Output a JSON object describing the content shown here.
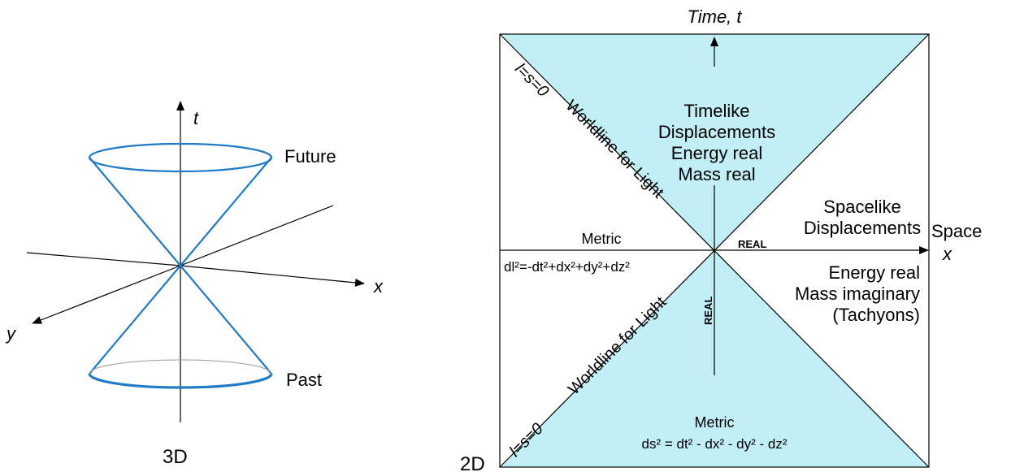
{
  "diagram_3d": {
    "axis_t_label": "t",
    "axis_x_label": "x",
    "axis_y_label": "y",
    "future_label": "Future",
    "past_label": "Past",
    "caption": "3D",
    "cone_color": "#1f7bc6"
  },
  "diagram_2d": {
    "time_axis_label": "Time, t",
    "space_axis_label": "Space",
    "space_axis_var": "x",
    "caption": "2D",
    "region_color": "#c2eef5",
    "timelike": [
      "Timelike",
      "Displacements",
      "Energy real",
      "Mass real"
    ],
    "spacelike": [
      "Spacelike",
      "Displacements"
    ],
    "tachyon": [
      "Energy real",
      "Mass imaginary",
      "(Tachyons)"
    ],
    "real_horizontal": "REAL",
    "real_vertical": "REAL",
    "worldline_upper": "Worldline for Light",
    "worldline_lower": "Worldline for Light",
    "lightlike_upper": "l=s=0",
    "lightlike_lower": "l=s=0",
    "metric_left_title": "Metric",
    "metric_left_formula": "dl²=-dt²+dx²+dy²+dz²",
    "metric_bottom_title": "Metric",
    "metric_bottom_formula": "ds² = dt² - dx² - dy² - dz²"
  }
}
